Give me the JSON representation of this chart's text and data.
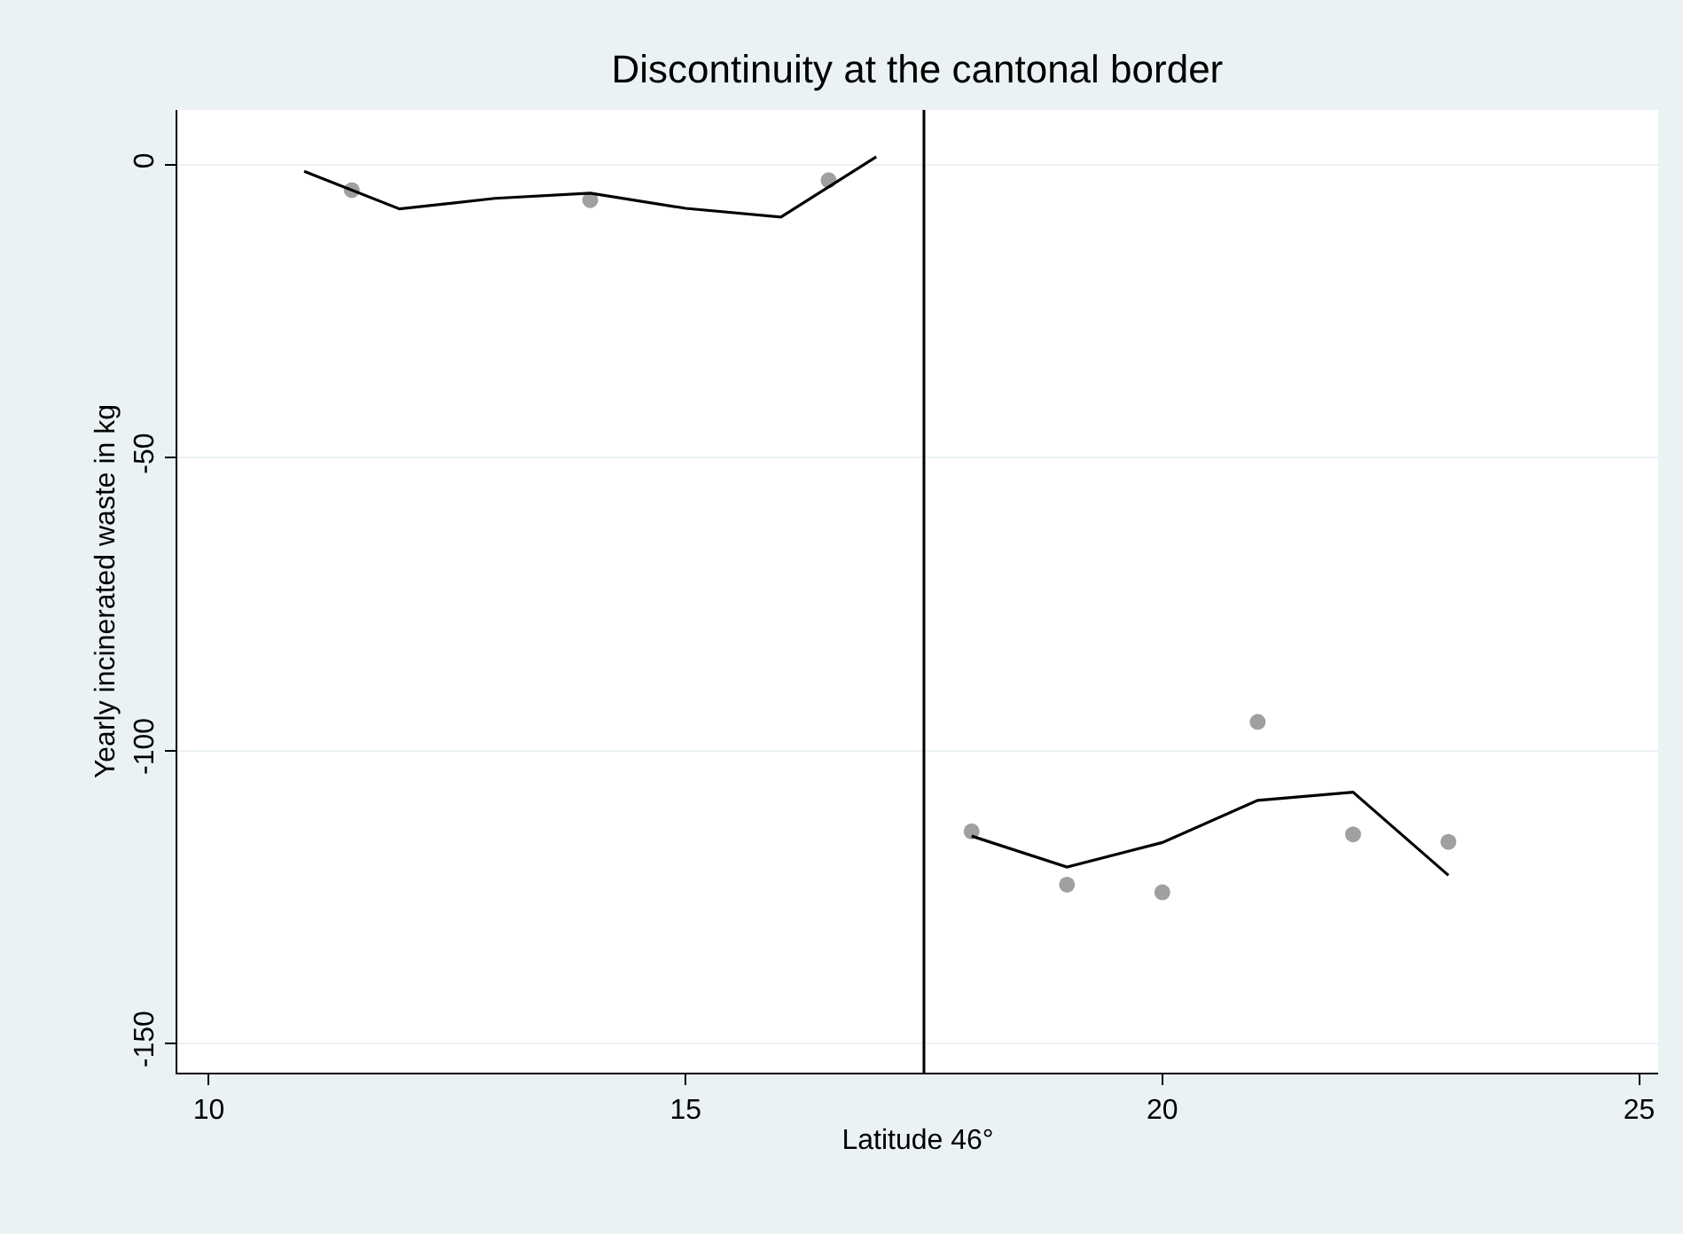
{
  "chart_data": {
    "type": "scatter",
    "title": "Discontinuity at the cantonal border",
    "xlabel": "Latitude 46°",
    "ylabel": "Yearly incinerated waste in kg",
    "xlim": [
      9.67,
      25.2
    ],
    "xticks": [
      10,
      15,
      20,
      25
    ],
    "ylim": [
      -155,
      9.4
    ],
    "yticks": [
      -150,
      -100,
      -50,
      0
    ],
    "grid": "y",
    "series": [
      {
        "color": "#a0a0a0",
        "marker": "circle",
        "x": [
          11.5,
          14,
          16.5,
          18,
          19,
          20,
          21,
          22,
          23
        ],
        "values": [
          -4.3,
          -6.0,
          -2.6,
          -113.8,
          -122.9,
          -124.2,
          -95.1,
          -114.3,
          -115.6
        ]
      },
      {
        "type": "line",
        "color": "#000000",
        "marker": "none",
        "x": [
          11,
          12,
          13,
          14,
          15,
          16,
          17
        ],
        "values": [
          -1.1,
          -7.5,
          -5.7,
          -4.8,
          -7.4,
          -8.9,
          1.4
        ]
      },
      {
        "type": "line",
        "color": "#000000",
        "marker": "none",
        "x": [
          18,
          19,
          20,
          21,
          22,
          23
        ],
        "values": [
          -114.6,
          -119.9,
          -115.7,
          -108.5,
          -107.1,
          -121.3
        ]
      }
    ],
    "ref_lines": [
      {
        "axis": "x",
        "value": 17.5,
        "color": "#000000"
      }
    ]
  }
}
